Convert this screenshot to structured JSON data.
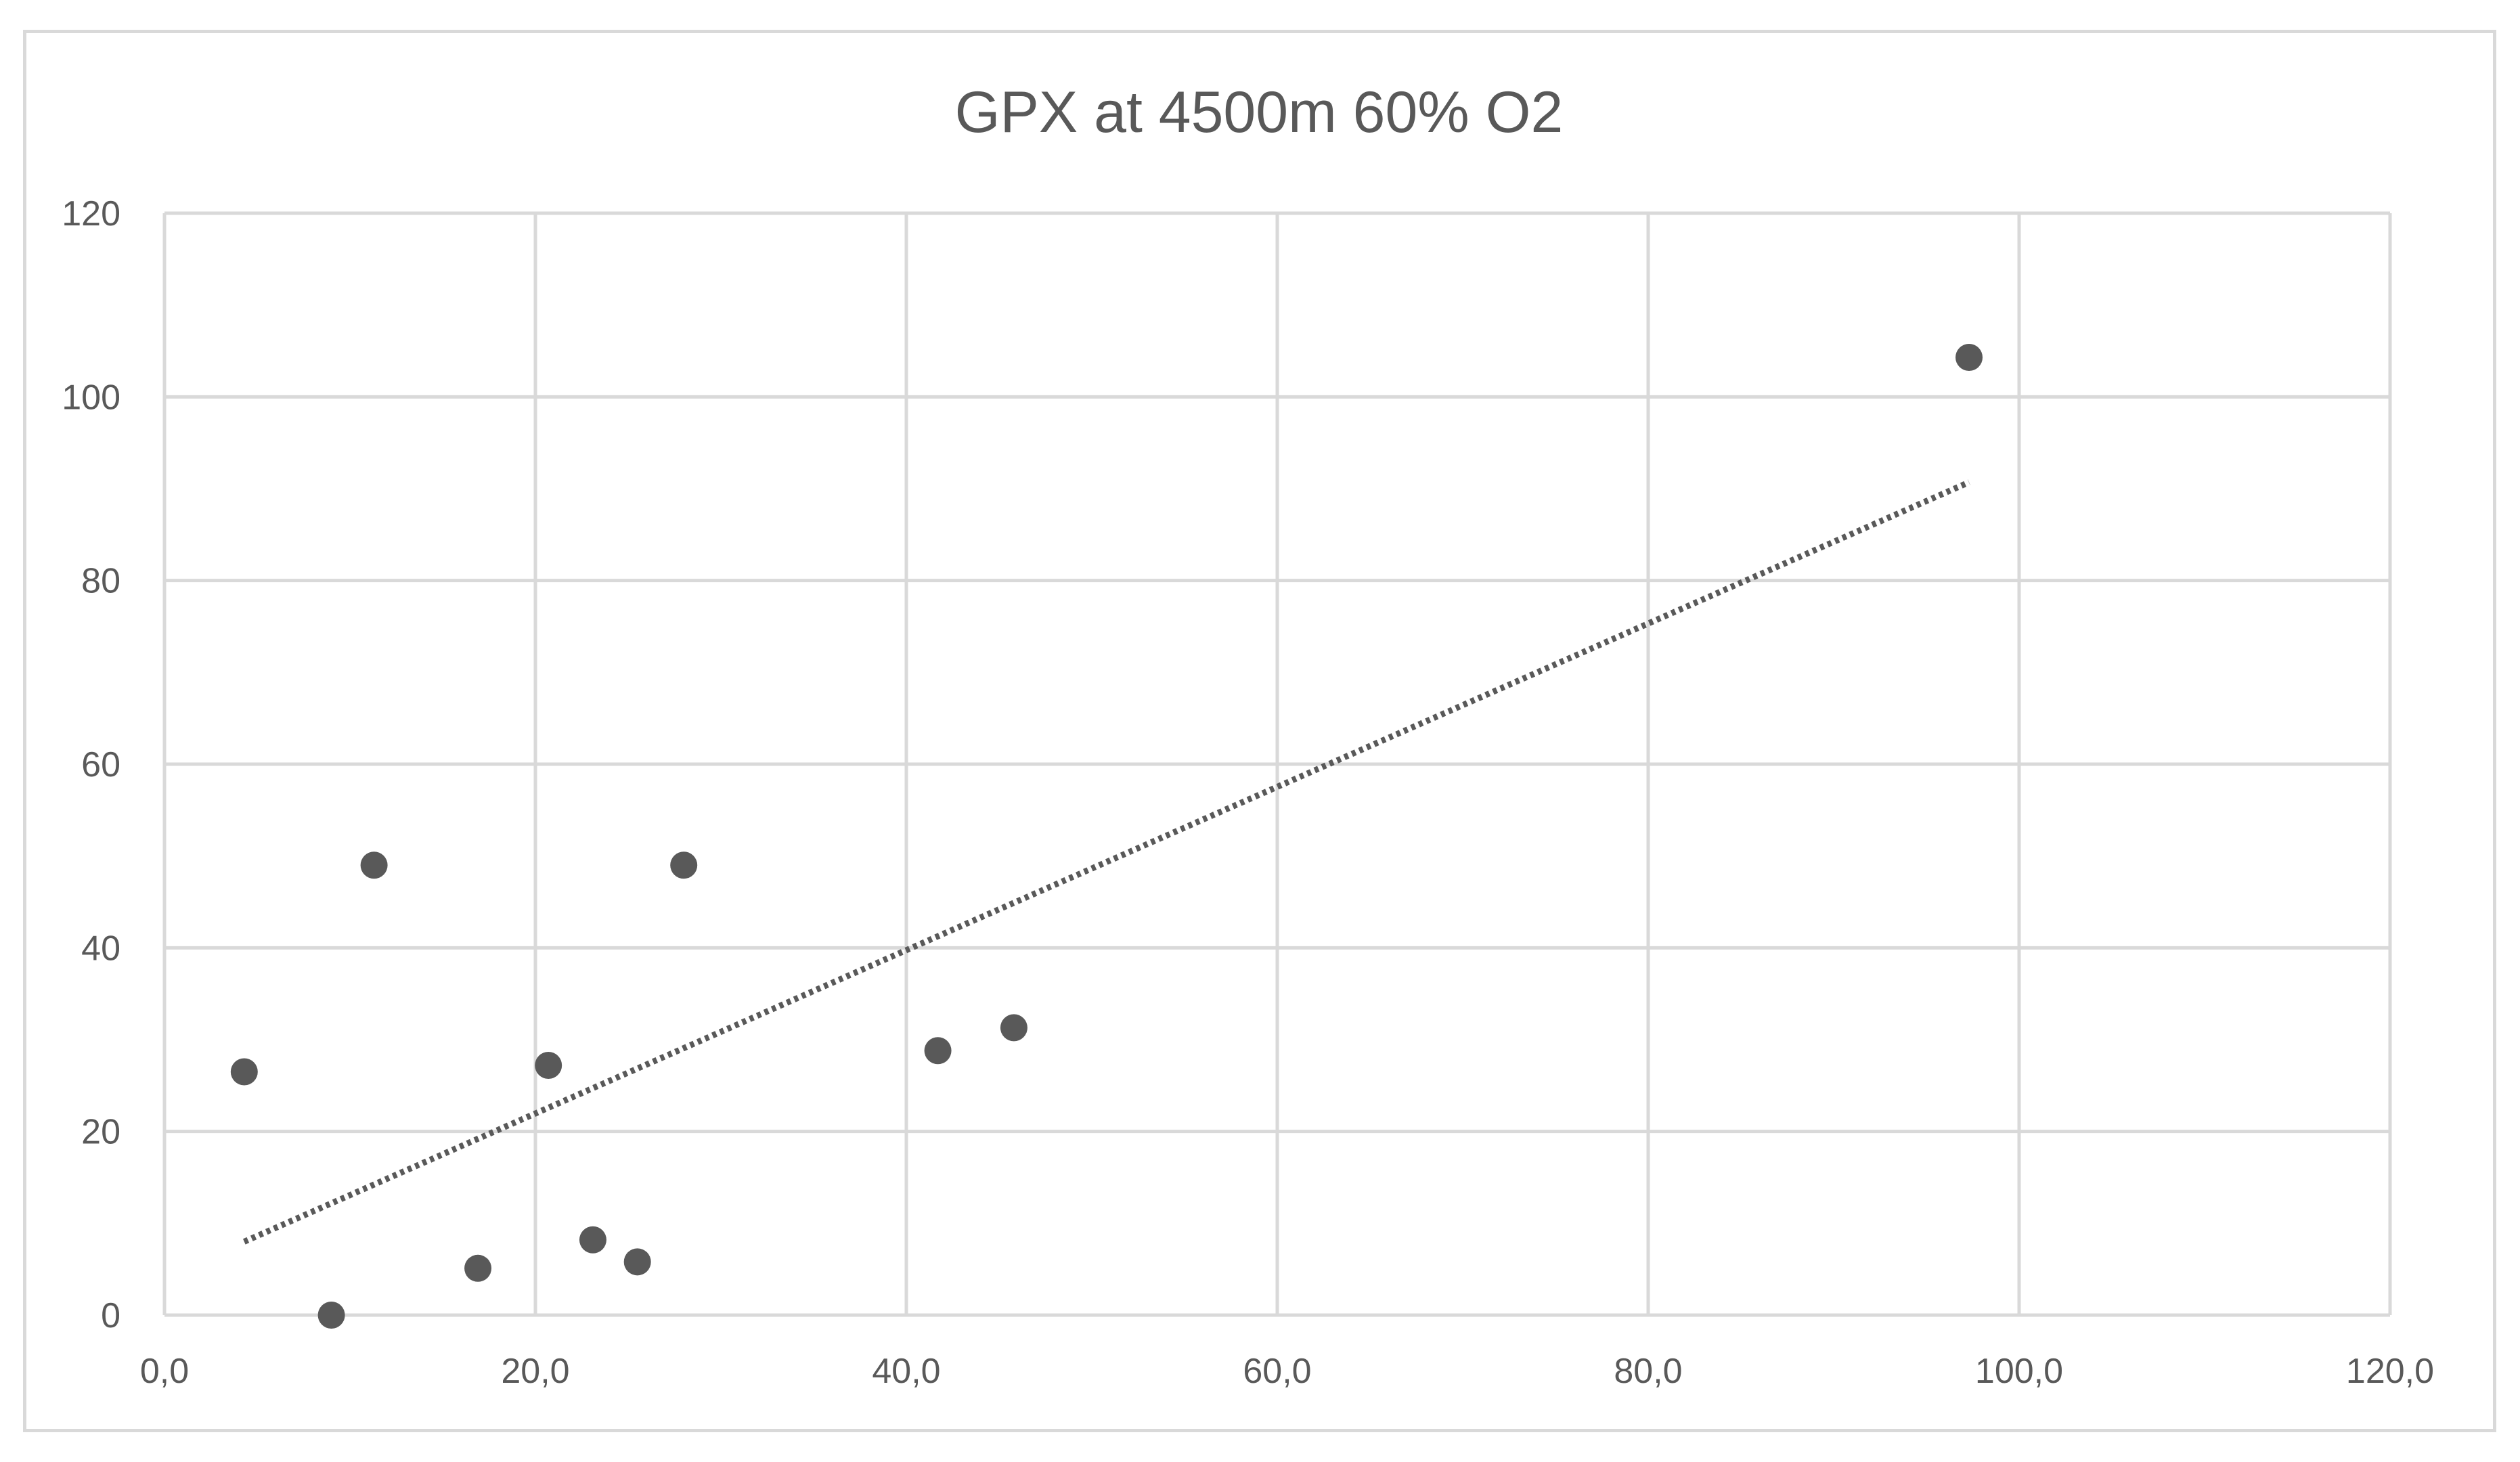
{
  "chart_data": {
    "type": "scatter",
    "title": "GPX at 4500m 60% O2",
    "xlabel": "",
    "ylabel": "",
    "xlim": [
      0,
      120
    ],
    "ylim": [
      0,
      120
    ],
    "x_ticks": [
      0,
      20,
      40,
      60,
      80,
      100,
      120
    ],
    "y_ticks": [
      0,
      20,
      40,
      60,
      80,
      100,
      120
    ],
    "x_tick_labels": [
      "0,0",
      "20,0",
      "40,0",
      "60,0",
      "80,0",
      "100,0",
      "120,0"
    ],
    "y_tick_labels": [
      "0",
      "20",
      "40",
      "60",
      "80",
      "100",
      "120"
    ],
    "grid": true,
    "legend": "none",
    "colors": {
      "points": "#595959",
      "trendline": "#595959",
      "grid": "#d9d9d9",
      "text": "#595959"
    },
    "series": [
      {
        "points": [
          {
            "x": 4.3,
            "y": 26.5
          },
          {
            "x": 9.0,
            "y": 0.0
          },
          {
            "x": 11.3,
            "y": 49.0
          },
          {
            "x": 16.9,
            "y": 5.1
          },
          {
            "x": 20.7,
            "y": 27.2
          },
          {
            "x": 23.1,
            "y": 8.2
          },
          {
            "x": 25.5,
            "y": 5.8
          },
          {
            "x": 28.0,
            "y": 49.0
          },
          {
            "x": 41.7,
            "y": 28.8
          },
          {
            "x": 45.8,
            "y": 31.3
          },
          {
            "x": 97.3,
            "y": 104.3
          }
        ]
      }
    ],
    "trendline": {
      "type": "linear",
      "style": "dotted",
      "x_start": 4.3,
      "y_start": 8.0,
      "x_end": 97.3,
      "y_end": 90.7
    }
  }
}
